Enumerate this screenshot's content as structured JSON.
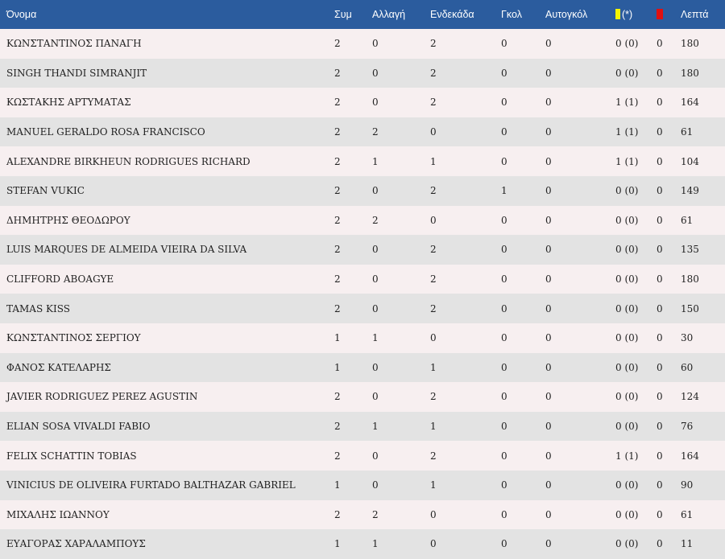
{
  "header": {
    "name": "Όνομα",
    "apps": "Συμ",
    "sub": "Αλλαγή",
    "starts": "Ενδεκάδα",
    "goals": "Γκολ",
    "own_goals": "Αυτογκόλ",
    "yellow_suffix": "(*)",
    "minutes": "Λεπτά"
  },
  "colors": {
    "header_bg": "#2b5c9e",
    "row_odd": "#f7eff0",
    "row_even": "#e3e3e3",
    "yellow_card": "#f5f500",
    "red_card": "#e01010"
  },
  "rows": [
    {
      "name": "ΚΩΝΣΤΑΝΤΙΝΟΣ ΠΑΝΑΓΗ",
      "apps": "2",
      "sub": "0",
      "starts": "2",
      "goals": "0",
      "own": "0",
      "yellow": "0 (0)",
      "red": "0",
      "minutes": "180"
    },
    {
      "name": "SINGH THANDI SIMRANJIT",
      "apps": "2",
      "sub": "0",
      "starts": "2",
      "goals": "0",
      "own": "0",
      "yellow": "0 (0)",
      "red": "0",
      "minutes": "180"
    },
    {
      "name": "ΚΩΣΤΑΚΗΣ ΑΡΤΥΜΑΤΑΣ",
      "apps": "2",
      "sub": "0",
      "starts": "2",
      "goals": "0",
      "own": "0",
      "yellow": "1 (1)",
      "red": "0",
      "minutes": "164"
    },
    {
      "name": "MANUEL GERALDO ROSA FRANCISCO",
      "apps": "2",
      "sub": "2",
      "starts": "0",
      "goals": "0",
      "own": "0",
      "yellow": "1 (1)",
      "red": "0",
      "minutes": "61"
    },
    {
      "name": "ALEXANDRE BIRKHEUN RODRIGUES RICHARD",
      "apps": "2",
      "sub": "1",
      "starts": "1",
      "goals": "0",
      "own": "0",
      "yellow": "1 (1)",
      "red": "0",
      "minutes": "104"
    },
    {
      "name": "STEFAN VUKIC",
      "apps": "2",
      "sub": "0",
      "starts": "2",
      "goals": "1",
      "own": "0",
      "yellow": "0 (0)",
      "red": "0",
      "minutes": "149"
    },
    {
      "name": "ΔΗΜΗΤΡΗΣ ΘΕΟΔΩΡΟΥ",
      "apps": "2",
      "sub": "2",
      "starts": "0",
      "goals": "0",
      "own": "0",
      "yellow": "0 (0)",
      "red": "0",
      "minutes": "61"
    },
    {
      "name": "LUIS MARQUES DE ALMEIDA VIEIRA DA SILVA",
      "apps": "2",
      "sub": "0",
      "starts": "2",
      "goals": "0",
      "own": "0",
      "yellow": "0 (0)",
      "red": "0",
      "minutes": "135"
    },
    {
      "name": "CLIFFORD ABOAGYE",
      "apps": "2",
      "sub": "0",
      "starts": "2",
      "goals": "0",
      "own": "0",
      "yellow": "0 (0)",
      "red": "0",
      "minutes": "180"
    },
    {
      "name": "TAMAS KISS",
      "apps": "2",
      "sub": "0",
      "starts": "2",
      "goals": "0",
      "own": "0",
      "yellow": "0 (0)",
      "red": "0",
      "minutes": "150"
    },
    {
      "name": "ΚΩΝΣΤΑΝΤΙΝΟΣ ΣΕΡΓΙΟΥ",
      "apps": "1",
      "sub": "1",
      "starts": "0",
      "goals": "0",
      "own": "0",
      "yellow": "0 (0)",
      "red": "0",
      "minutes": "30"
    },
    {
      "name": "ΦΑΝΟΣ ΚΑΤΕΛΑΡΗΣ",
      "apps": "1",
      "sub": "0",
      "starts": "1",
      "goals": "0",
      "own": "0",
      "yellow": "0 (0)",
      "red": "0",
      "minutes": "60"
    },
    {
      "name": "JAVIER RODRIGUEZ PEREZ AGUSTIN",
      "apps": "2",
      "sub": "0",
      "starts": "2",
      "goals": "0",
      "own": "0",
      "yellow": "0 (0)",
      "red": "0",
      "minutes": "124"
    },
    {
      "name": "ELIAN SOSA VIVALDI FABIO",
      "apps": "2",
      "sub": "1",
      "starts": "1",
      "goals": "0",
      "own": "0",
      "yellow": "0 (0)",
      "red": "0",
      "minutes": "76"
    },
    {
      "name": "FELIX SCHATTIN TOBIAS",
      "apps": "2",
      "sub": "0",
      "starts": "2",
      "goals": "0",
      "own": "0",
      "yellow": "1 (1)",
      "red": "0",
      "minutes": "164"
    },
    {
      "name": "VINICIUS DE OLIVEIRA FURTADO BALTHAZAR GABRIEL",
      "apps": "1",
      "sub": "0",
      "starts": "1",
      "goals": "0",
      "own": "0",
      "yellow": "0 (0)",
      "red": "0",
      "minutes": "90"
    },
    {
      "name": "ΜΙΧΑΛΗΣ ΙΩΑΝΝΟΥ",
      "apps": "2",
      "sub": "2",
      "starts": "0",
      "goals": "0",
      "own": "0",
      "yellow": "0 (0)",
      "red": "0",
      "minutes": "61"
    },
    {
      "name": "ΕΥΑΓΟΡΑΣ ΧΑΡΑΛΑΜΠΟΥΣ",
      "apps": "1",
      "sub": "1",
      "starts": "0",
      "goals": "0",
      "own": "0",
      "yellow": "0 (0)",
      "red": "0",
      "minutes": "11"
    }
  ]
}
